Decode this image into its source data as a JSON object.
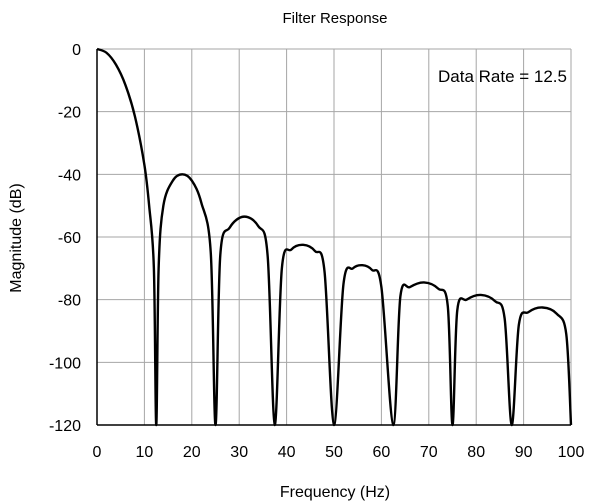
{
  "chart_data": {
    "type": "line",
    "title": "Filter Response",
    "xlabel": "Frequency (Hz)",
    "ylabel": "Magnitude (dB)",
    "annotation": "Data Rate = 12.5",
    "xlim": [
      0,
      100
    ],
    "ylim": [
      -120,
      0
    ],
    "xticks": [
      0,
      10,
      20,
      30,
      40,
      50,
      60,
      70,
      80,
      90,
      100
    ],
    "yticks": [
      0,
      -20,
      -40,
      -60,
      -80,
      -100,
      -120
    ],
    "xtick_labels": [
      "0",
      "10",
      "20",
      "30",
      "40",
      "50",
      "60",
      "70",
      "80",
      "90",
      "100"
    ],
    "ytick_labels": [
      "0",
      "-20",
      "-40",
      "-60",
      "-80",
      "-100",
      "-120"
    ],
    "grid": true,
    "legend": "none",
    "colors": {
      "line": "#000000",
      "grid": "#a6a6a6",
      "axis": "#000000"
    },
    "series": [
      {
        "x": [
          0,
          2,
          4,
          6,
          8,
          10,
          11,
          12,
          12.5,
          13,
          14,
          16,
          18,
          20,
          22,
          24,
          25,
          26,
          28,
          31,
          34,
          36,
          37.5,
          39,
          41,
          43.5,
          46,
          48,
          50,
          52,
          54,
          56,
          58,
          60,
          62.5,
          64,
          66,
          69,
          72,
          74,
          75,
          76,
          78,
          81,
          84,
          86,
          87.5,
          89,
          91,
          94,
          97,
          99,
          100
        ],
        "y": [
          0,
          -1.2,
          -5,
          -11.5,
          -21.5,
          -37,
          -50,
          -70,
          -120,
          -70,
          -50,
          -42,
          -40,
          -42,
          -49,
          -65,
          -120,
          -66,
          -57,
          -53.5,
          -56.5,
          -66,
          -120,
          -70,
          -64,
          -62.5,
          -64.5,
          -71,
          -120,
          -75,
          -70,
          -69,
          -70.5,
          -76,
          -120,
          -79,
          -76,
          -74.5,
          -76.5,
          -82,
          -120,
          -83.5,
          -80,
          -78.5,
          -80.5,
          -86,
          -120,
          -88,
          -84,
          -82.5,
          -84.5,
          -91,
          -120
        ]
      }
    ]
  }
}
